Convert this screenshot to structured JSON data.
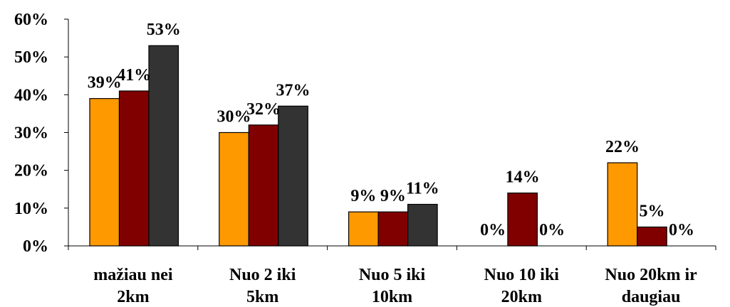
{
  "chart_data": {
    "type": "bar",
    "categories": [
      [
        "mažiau nei",
        "2km"
      ],
      [
        "Nuo 2 iki",
        "5km"
      ],
      [
        "Nuo 5 iki",
        "10km"
      ],
      [
        "Nuo 10 iki",
        "20km"
      ],
      [
        "Nuo 20km ir",
        "daugiau"
      ]
    ],
    "series": [
      {
        "color": "#FF9900",
        "values": [
          39,
          30,
          9,
          0,
          22
        ],
        "labels": [
          "39%",
          "30%",
          "9%",
          "0%",
          "22%"
        ]
      },
      {
        "color": "#800000",
        "values": [
          41,
          32,
          9,
          14,
          5
        ],
        "labels": [
          "41%",
          "32%",
          "9%",
          "14%",
          "5%"
        ]
      },
      {
        "color": "#333333",
        "values": [
          53,
          37,
          11,
          0,
          0
        ],
        "labels": [
          "53%",
          "37%",
          "11%",
          "0%",
          "0%"
        ]
      }
    ],
    "yticks": [
      "0%",
      "10%",
      "20%",
      "30%",
      "40%",
      "50%",
      "60%"
    ],
    "ylim": [
      0,
      60
    ],
    "grid": false,
    "legend": "none"
  }
}
